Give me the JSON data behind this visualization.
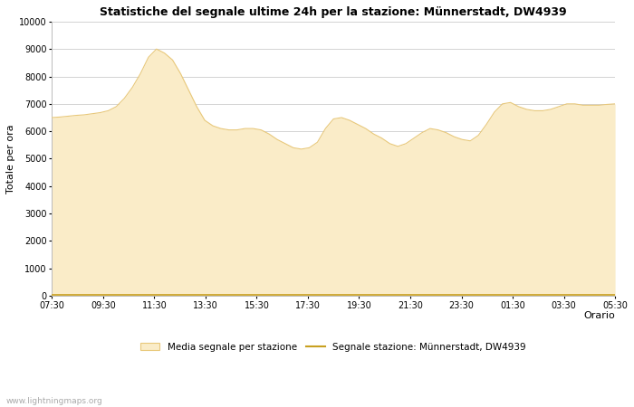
{
  "title": "Statistiche del segnale ultime 24h per la stazione: Münnerstadt, DW4939",
  "xlabel": "Orario",
  "ylabel": "Totale per ora",
  "ylim": [
    0,
    10000
  ],
  "yticks": [
    0,
    1000,
    2000,
    3000,
    4000,
    5000,
    6000,
    7000,
    8000,
    9000,
    10000
  ],
  "x_labels": [
    "07:30",
    "09:30",
    "11:30",
    "13:30",
    "15:30",
    "17:30",
    "19:30",
    "21:30",
    "23:30",
    "01:30",
    "03:30",
    "05:30"
  ],
  "fill_color": "#faecc8",
  "fill_edge_color": "#e8c87a",
  "line_color": "#c8a020",
  "background_color": "#ffffff",
  "grid_color": "#cccccc",
  "watermark": "www.lightningmaps.org",
  "legend_fill_label": "Media segnale per stazione",
  "legend_line_label": "Segnale stazione: Münnerstadt, DW4939",
  "x_values": [
    0,
    1,
    2,
    3,
    4,
    5,
    6,
    7,
    8,
    9,
    10,
    11,
    12,
    13,
    14,
    15,
    16,
    17,
    18,
    19,
    20,
    21,
    22,
    23,
    24,
    25,
    26,
    27,
    28,
    29,
    30,
    31,
    32,
    33,
    34,
    35,
    36,
    37,
    38,
    39,
    40,
    41,
    42,
    43,
    44,
    45,
    46,
    47,
    48,
    49,
    50,
    51,
    52,
    53,
    54,
    55,
    56,
    57,
    58,
    59,
    60,
    61,
    62,
    63,
    64,
    65,
    66,
    67,
    68,
    69,
    70
  ],
  "fill_values": [
    6500,
    6520,
    6550,
    6580,
    6600,
    6640,
    6680,
    6750,
    6900,
    7200,
    7600,
    8100,
    8700,
    9000,
    8850,
    8600,
    8100,
    7500,
    6900,
    6400,
    6200,
    6100,
    6050,
    6050,
    6100,
    6100,
    6050,
    5900,
    5700,
    5550,
    5400,
    5350,
    5400,
    5600,
    6100,
    6450,
    6500,
    6400,
    6250,
    6100,
    5900,
    5750,
    5550,
    5450,
    5550,
    5750,
    5950,
    6100,
    6050,
    5950,
    5800,
    5700,
    5650,
    5850,
    6250,
    6700,
    7000,
    7050,
    6900,
    6800,
    6750,
    6750,
    6800,
    6900,
    7000,
    7000,
    6950,
    6950,
    6950,
    6980,
    7000
  ],
  "line_values": [
    50,
    50,
    50,
    50,
    50,
    50,
    50,
    50,
    50,
    50,
    50,
    50,
    50,
    50,
    50,
    50,
    50,
    50,
    50,
    50,
    50,
    50,
    50,
    50,
    50,
    50,
    50,
    50,
    50,
    50,
    50,
    50,
    50,
    50,
    50,
    50,
    50,
    50,
    50,
    50,
    50,
    50,
    50,
    50,
    50,
    50,
    50,
    50,
    50,
    50,
    50,
    50,
    50,
    50,
    50,
    50,
    50,
    50,
    50,
    50,
    50,
    50,
    50,
    50,
    50,
    50,
    50,
    50,
    50,
    50,
    50
  ]
}
